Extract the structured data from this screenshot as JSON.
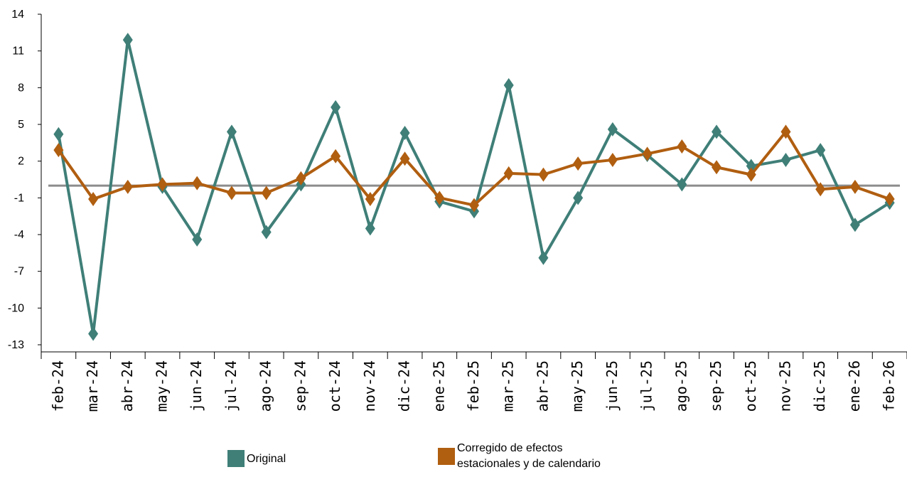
{
  "chart_data": {
    "type": "line",
    "categories": [
      "feb-24",
      "mar-24",
      "abr-24",
      "may-24",
      "jun-24",
      "jul-24",
      "ago-24",
      "sep-24",
      "oct-24",
      "nov-24",
      "dic-24",
      "ene-25",
      "feb-25",
      "mar-25",
      "abr-25",
      "may-25",
      "jun-25",
      "jul-25",
      "ago-25",
      "sep-25",
      "oct-25",
      "nov-25",
      "dic-25",
      "ene-26",
      "feb-26"
    ],
    "series": [
      {
        "name": "Original",
        "color": "#3f7f78",
        "marker": "diamond",
        "values": [
          4.2,
          -12.1,
          11.9,
          -0.1,
          -4.4,
          4.4,
          -3.8,
          0.1,
          6.4,
          -3.5,
          4.3,
          -1.3,
          -2.1,
          8.2,
          -5.9,
          -1.0,
          4.6,
          2.5,
          0.1,
          4.4,
          1.6,
          2.1,
          2.9,
          -3.2,
          -1.4
        ]
      },
      {
        "name": "Corregido de efectos estacionales y de calendario",
        "color": "#b05e10",
        "marker": "diamond",
        "values": [
          2.9,
          -1.1,
          -0.1,
          0.1,
          0.2,
          -0.6,
          -0.6,
          0.6,
          2.4,
          -1.1,
          2.2,
          -1.0,
          -1.6,
          1.0,
          0.9,
          1.8,
          2.1,
          2.6,
          3.2,
          1.5,
          0.9,
          4.4,
          -0.3,
          -0.1,
          -1.1
        ]
      }
    ],
    "reference_line": 0,
    "yticks": [
      14,
      11,
      8,
      5,
      2,
      -1,
      -4,
      -7,
      -10,
      -13
    ],
    "ylim": [
      -13,
      14
    ],
    "grid": false,
    "legend_position": "bottom"
  },
  "legend": {
    "original_label": "Original",
    "corrected_label_line1": "Corregido de efectos",
    "corrected_label_line2": "estacionales y de calendario"
  }
}
